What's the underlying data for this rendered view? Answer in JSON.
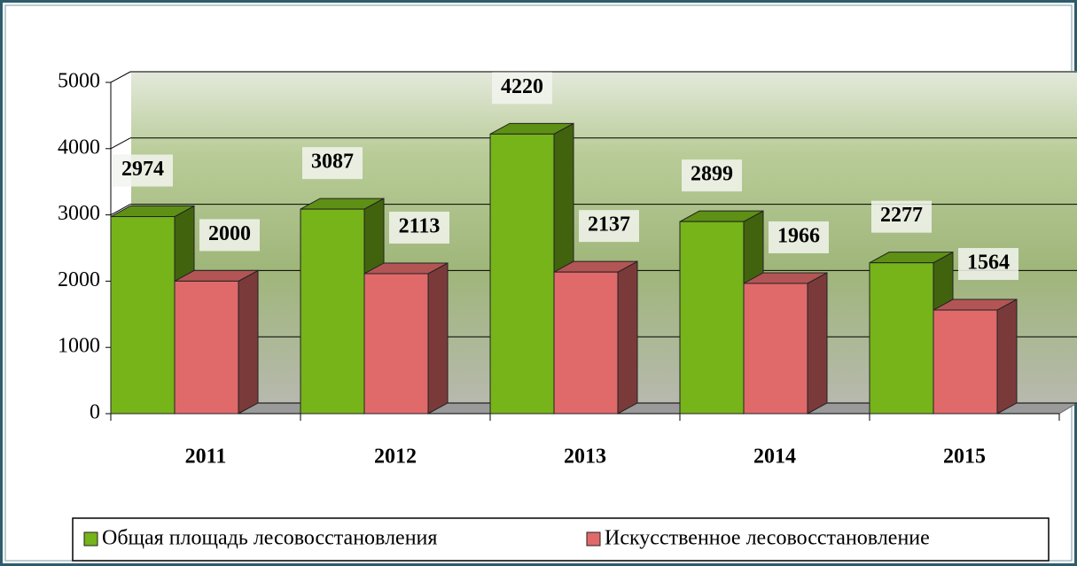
{
  "chart_data": {
    "type": "bar",
    "categories": [
      "2011",
      "2012",
      "2013",
      "2014",
      "2015"
    ],
    "series": [
      {
        "name": "Общая площадь лесовосстановления",
        "color": "#76b41a",
        "values": [
          2974,
          3087,
          4220,
          2899,
          2277
        ]
      },
      {
        "name": "Искусственное лесовосстановление",
        "color": "#e06a6a",
        "values": [
          2000,
          2113,
          2137,
          1966,
          1564
        ]
      }
    ],
    "ylim": [
      0,
      5000
    ],
    "yticks": [
      0,
      1000,
      2000,
      3000,
      4000,
      5000
    ],
    "grid": true,
    "legend": "bottom"
  }
}
